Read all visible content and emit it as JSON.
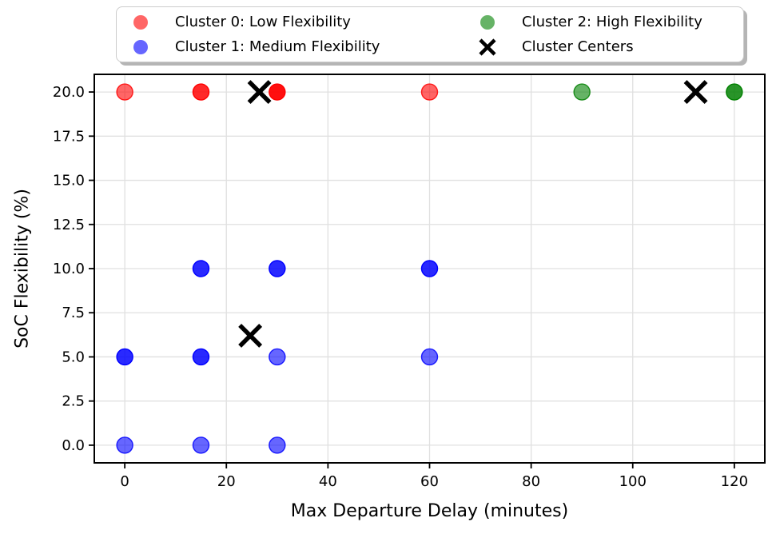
{
  "figure": {
    "background": "#ffffff"
  },
  "legend": {
    "entries": [
      {
        "label": "Cluster 0: Low Flexibility",
        "marker": "circle",
        "color": "#ff6666"
      },
      {
        "label": "Cluster 1: Medium Flexibility",
        "marker": "circle",
        "color": "#6666ff"
      },
      {
        "label": "Cluster 2: High Flexibility",
        "marker": "circle",
        "color": "#66b366"
      },
      {
        "label": "Cluster Centers",
        "marker": "x",
        "color": "#000000"
      }
    ]
  },
  "chart_data": {
    "type": "scatter",
    "title": "",
    "xlabel": "Max Departure Delay (minutes)",
    "ylabel": "SoC Flexibility (%)",
    "xlim": [
      -6,
      126
    ],
    "ylim": [
      -1,
      21
    ],
    "x_ticks": [
      0,
      20,
      40,
      60,
      80,
      100,
      120
    ],
    "x_tick_labels": [
      "0",
      "20",
      "40",
      "60",
      "80",
      "100",
      "120"
    ],
    "y_ticks": [
      0,
      2.5,
      5,
      7.5,
      10,
      12.5,
      15,
      17.5,
      20
    ],
    "y_tick_labels": [
      "0.0",
      "2.5",
      "5.0",
      "7.5",
      "10.0",
      "12.5",
      "15.0",
      "17.5",
      "20.0"
    ],
    "grid": true,
    "grid_color": "#e0e0e0",
    "frame_color": "#000000",
    "legend_position": "top",
    "series": [
      {
        "name": "Cluster 0: Low Flexibility",
        "marker": "circle",
        "color": "#ff0000",
        "points": [
          {
            "x": 0,
            "y": 20,
            "opacity": 0.6
          },
          {
            "x": 15,
            "y": 20,
            "opacity": 0.84
          },
          {
            "x": 30,
            "y": 20,
            "opacity": 0.94
          },
          {
            "x": 60,
            "y": 20,
            "opacity": 0.6
          }
        ]
      },
      {
        "name": "Cluster 1: Medium Flexibility",
        "marker": "circle",
        "color": "#0000ff",
        "points": [
          {
            "x": 15,
            "y": 10,
            "opacity": 0.84
          },
          {
            "x": 30,
            "y": 10,
            "opacity": 0.84
          },
          {
            "x": 60,
            "y": 10,
            "opacity": 0.84
          },
          {
            "x": 0,
            "y": 5,
            "opacity": 0.84
          },
          {
            "x": 15,
            "y": 5,
            "opacity": 0.84
          },
          {
            "x": 30,
            "y": 5,
            "opacity": 0.6
          },
          {
            "x": 60,
            "y": 5,
            "opacity": 0.6
          },
          {
            "x": 0,
            "y": 0,
            "opacity": 0.6
          },
          {
            "x": 15,
            "y": 0,
            "opacity": 0.6
          },
          {
            "x": 30,
            "y": 0,
            "opacity": 0.6
          }
        ]
      },
      {
        "name": "Cluster 2: High Flexibility",
        "marker": "circle",
        "color": "#008000",
        "points": [
          {
            "x": 90,
            "y": 20,
            "opacity": 0.6
          },
          {
            "x": 120,
            "y": 20,
            "opacity": 0.84
          }
        ]
      },
      {
        "name": "Cluster Centers",
        "marker": "x",
        "color": "#000000",
        "points": [
          {
            "x": 26.5,
            "y": 20
          },
          {
            "x": 112.4,
            "y": 20
          },
          {
            "x": 24.7,
            "y": 6.2
          }
        ]
      }
    ]
  }
}
